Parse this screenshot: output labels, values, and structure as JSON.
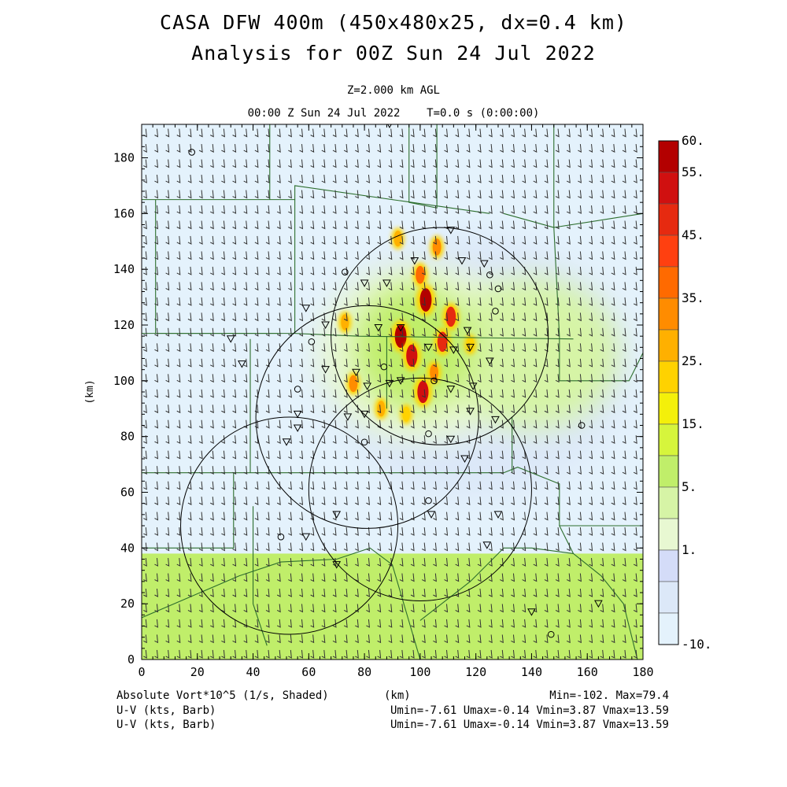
{
  "header": {
    "title_line1": "CASA DFW 400m (450x480x25, dx=0.4 km)",
    "title_line2": "Analysis for 00Z Sun 24 Jul 2022",
    "level": "Z=2.000 km AGL",
    "valid_time": "00:00 Z Sun 24 Jul 2022    T=0.0 s (0:00:00)"
  },
  "footer": {
    "field_label": "Absolute Vort*10^5 (1/s, Shaded)",
    "x_unit": "(km)",
    "minmax": "Min=-102. Max=79.4",
    "vector1_label": "U-V (kts, Barb)",
    "vector1_stats": "Umin=-7.61 Umax=-0.14 Vmin=3.87 Vmax=13.59",
    "vector2_label": "U-V (kts, Barb)",
    "vector2_stats": "Umin=-7.61 Umax=-0.14 Vmin=3.87 Vmax=13.59"
  },
  "chart_data": {
    "type": "heatmap",
    "title": "CASA DFW 400m (450x480x25, dx=0.4 km)",
    "xlabel": "(km)",
    "ylabel": "(km)",
    "xlim": [
      0,
      180
    ],
    "ylim": [
      0,
      192
    ],
    "x_ticks": [
      "0",
      "20",
      "40",
      "60",
      "80",
      "100",
      "120",
      "140",
      "160",
      "180"
    ],
    "y_ticks": [
      "0",
      "20",
      "40",
      "60",
      "80",
      "100",
      "120",
      "140",
      "160",
      "180"
    ],
    "colorbar": {
      "labels": [
        "60.",
        "55.",
        "45.",
        "35.",
        "25.",
        "15.",
        "5.",
        "1.",
        "-10."
      ],
      "colors": [
        "#b30000",
        "#d01010",
        "#e62a10",
        "#ff4010",
        "#ff6a00",
        "#ff8c00",
        "#ffb000",
        "#ffd200",
        "#f4f00a",
        "#d6f53c",
        "#c0ee6a",
        "#d6f4a6",
        "#e8f8d2",
        "#d4dcf8",
        "#dce8f8",
        "#e4f2fc"
      ]
    },
    "vorticity_features": [
      {
        "x": 102,
        "y": 129,
        "value": 60
      },
      {
        "x": 93,
        "y": 116,
        "value": 60
      },
      {
        "x": 97,
        "y": 109,
        "value": 55
      },
      {
        "x": 101,
        "y": 96,
        "value": 55
      },
      {
        "x": 108,
        "y": 114,
        "value": 45
      },
      {
        "x": 111,
        "y": 123,
        "value": 45
      },
      {
        "x": 100,
        "y": 138,
        "value": 35
      },
      {
        "x": 106,
        "y": 148,
        "value": 30
      },
      {
        "x": 76,
        "y": 99,
        "value": 30
      },
      {
        "x": 86,
        "y": 90,
        "value": 25
      },
      {
        "x": 73,
        "y": 121,
        "value": 25
      },
      {
        "x": 92,
        "y": 151,
        "value": 25
      },
      {
        "x": 95,
        "y": 88,
        "value": 20
      },
      {
        "x": 105,
        "y": 103,
        "value": 30
      },
      {
        "x": 118,
        "y": 113,
        "value": 20
      }
    ],
    "radar_rings": [
      {
        "center": [
          107,
          116
        ],
        "radius": 39
      },
      {
        "center": [
          81,
          87
        ],
        "radius": 40
      },
      {
        "center": [
          100,
          61
        ],
        "radius": 40
      },
      {
        "center": [
          53,
          48
        ],
        "radius": 39
      }
    ],
    "stations_triangle": [
      [
        89,
        192
      ],
      [
        111,
        154
      ],
      [
        98,
        143
      ],
      [
        115,
        143
      ],
      [
        123,
        142
      ],
      [
        80,
        135
      ],
      [
        88,
        135
      ],
      [
        59,
        126
      ],
      [
        66,
        120
      ],
      [
        85,
        119
      ],
      [
        93,
        119
      ],
      [
        117,
        118
      ],
      [
        103,
        112
      ],
      [
        112,
        111
      ],
      [
        118,
        112
      ],
      [
        125,
        107
      ],
      [
        32,
        115
      ],
      [
        36,
        106
      ],
      [
        66,
        104
      ],
      [
        77,
        103
      ],
      [
        81,
        98
      ],
      [
        89,
        99
      ],
      [
        93,
        100
      ],
      [
        111,
        97
      ],
      [
        119,
        98
      ],
      [
        56,
        88
      ],
      [
        56,
        83
      ],
      [
        74,
        87
      ],
      [
        80,
        88
      ],
      [
        118,
        89
      ],
      [
        127,
        86
      ],
      [
        52,
        78
      ],
      [
        111,
        79
      ],
      [
        116,
        72
      ],
      [
        70,
        52
      ],
      [
        59,
        44
      ],
      [
        124,
        41
      ],
      [
        70,
        34
      ],
      [
        104,
        52
      ],
      [
        128,
        52
      ],
      [
        140,
        17
      ],
      [
        164,
        20
      ]
    ],
    "stations_circle": [
      [
        18,
        182
      ],
      [
        73,
        139
      ],
      [
        125,
        138
      ],
      [
        128,
        133
      ],
      [
        127,
        125
      ],
      [
        61,
        114
      ],
      [
        87,
        105
      ],
      [
        105,
        100
      ],
      [
        56,
        97
      ],
      [
        103,
        81
      ],
      [
        80,
        78
      ],
      [
        158,
        84
      ],
      [
        103,
        57
      ],
      [
        50,
        44
      ],
      [
        147,
        9
      ]
    ]
  }
}
